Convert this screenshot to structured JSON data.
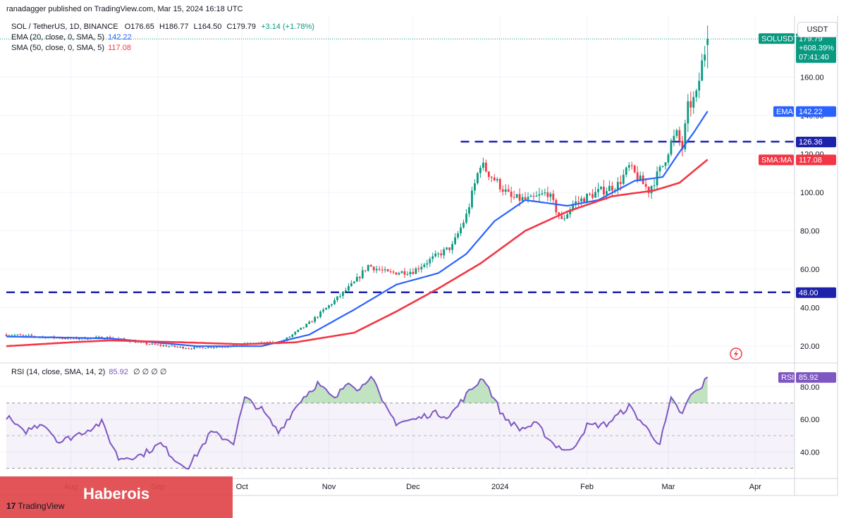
{
  "header": {
    "published_by": "ranadagger published on TradingView.com, Mar 15, 2024 16:18 UTC"
  },
  "legend": {
    "symbol": "SOL / TetherUS, 1D, BINANCE",
    "open": "O176.65",
    "high": "H186.77",
    "low": "L164.50",
    "close": "C179.79",
    "change": "+3.14 (+1.78%)",
    "ema_label": "EMA (20, close, 0, SMA, 5)",
    "ema_value": "142.22",
    "sma_label": "SMA (50, close, 0, SMA, 5)",
    "sma_value": "117.08",
    "rsi_label": "RSI (14, close, SMA, 14, 2)",
    "rsi_value": "85.92",
    "rsi_extra": "∅ ∅ ∅ ∅"
  },
  "currency_button": "USDT",
  "banner": {
    "text": "Haberois"
  },
  "logo": {
    "mark": "17",
    "text": "TradingView"
  },
  "colors": {
    "up": "#089981",
    "down": "#f23645",
    "ema": "#2962ff",
    "sma": "#f23645",
    "rsi": "#7e57c2",
    "level_line": "#1e22aa",
    "rsi_band": "#7e57c2"
  },
  "chart_data": [
    {
      "type": "candlestick",
      "title": "SOL / TetherUS, 1D, BINANCE",
      "x_ticks": [
        "Aug",
        "Sep",
        "Oct",
        "Nov",
        "Dec",
        "2024",
        "Feb",
        "Mar",
        "Apr"
      ],
      "x_tick_dates": [
        "2023-08-01",
        "2023-09-01",
        "2023-10-01",
        "2023-11-01",
        "2023-12-01",
        "2024-01-01",
        "2024-02-01",
        "2024-03-01",
        "2024-04-01"
      ],
      "x_range": [
        "2023-07-09",
        "2024-04-15"
      ],
      "y_range": [
        12,
        192
      ],
      "y_ticks": [
        20.0,
        40.0,
        60.0,
        80.0,
        100.0,
        120.0,
        140.0,
        160.0
      ],
      "grid": true,
      "price_labels": [
        {
          "text": "SOLUSDT",
          "value": 179.79,
          "sub": [
            "179.79",
            "+608.39%",
            "07:41:40"
          ],
          "color": "#089981"
        },
        {
          "text": "EMA",
          "value": 142.22,
          "color": "#2962ff"
        },
        {
          "text": "SMA:MA",
          "value": 117.08,
          "color": "#f23645"
        },
        {
          "text": "",
          "value": 126.36,
          "color": "#1e22aa"
        },
        {
          "text": "",
          "value": 48.0,
          "color": "#1e22aa"
        }
      ],
      "horizontal_levels": [
        {
          "value": 126.36,
          "from": "2023-12-18",
          "to": "2024-04-15"
        },
        {
          "value": 48.0,
          "from": "2023-07-09",
          "to": "2024-04-15"
        }
      ],
      "close_anchors": [
        [
          "2023-07-09",
          26
        ],
        [
          "2023-07-20",
          25
        ],
        [
          "2023-08-01",
          24
        ],
        [
          "2023-08-15",
          24.5
        ],
        [
          "2023-08-29",
          21
        ],
        [
          "2023-09-12",
          19
        ],
        [
          "2023-09-26",
          20
        ],
        [
          "2023-10-01",
          21
        ],
        [
          "2023-10-15",
          22
        ],
        [
          "2023-10-25",
          32
        ],
        [
          "2023-11-01",
          41
        ],
        [
          "2023-11-10",
          53
        ],
        [
          "2023-11-15",
          62
        ],
        [
          "2023-11-22",
          58
        ],
        [
          "2023-12-01",
          59
        ],
        [
          "2023-12-05",
          63
        ],
        [
          "2023-12-15",
          72
        ],
        [
          "2023-12-20",
          88
        ],
        [
          "2023-12-25",
          115
        ],
        [
          "2023-12-28",
          110
        ],
        [
          "2024-01-05",
          97
        ],
        [
          "2024-01-12",
          96
        ],
        [
          "2024-01-18",
          100
        ],
        [
          "2024-01-23",
          85
        ],
        [
          "2024-01-27",
          94
        ],
        [
          "2024-02-03",
          99
        ],
        [
          "2024-02-12",
          104
        ],
        [
          "2024-02-16",
          113
        ],
        [
          "2024-02-23",
          101
        ],
        [
          "2024-02-28",
          114
        ],
        [
          "2024-03-02",
          126
        ],
        [
          "2024-03-04",
          130
        ],
        [
          "2024-03-06",
          123
        ],
        [
          "2024-03-08",
          144
        ],
        [
          "2024-03-11",
          150
        ],
        [
          "2024-03-13",
          167
        ],
        [
          "2024-03-15",
          179.79
        ]
      ],
      "ema20_anchors": [
        [
          "2023-07-09",
          25
        ],
        [
          "2023-08-15",
          24
        ],
        [
          "2023-09-15",
          20
        ],
        [
          "2023-10-08",
          20
        ],
        [
          "2023-10-25",
          26
        ],
        [
          "2023-11-10",
          39
        ],
        [
          "2023-11-25",
          52
        ],
        [
          "2023-12-10",
          58
        ],
        [
          "2023-12-20",
          68
        ],
        [
          "2023-12-30",
          85
        ],
        [
          "2024-01-10",
          96
        ],
        [
          "2024-01-25",
          93
        ],
        [
          "2024-02-05",
          96
        ],
        [
          "2024-02-18",
          106
        ],
        [
          "2024-02-28",
          108
        ],
        [
          "2024-03-05",
          121
        ],
        [
          "2024-03-10",
          131
        ],
        [
          "2024-03-15",
          142.22
        ]
      ],
      "sma50_anchors": [
        [
          "2023-07-09",
          20
        ],
        [
          "2023-08-01",
          22
        ],
        [
          "2023-08-15",
          23
        ],
        [
          "2023-09-10",
          22
        ],
        [
          "2023-10-01",
          21
        ],
        [
          "2023-10-20",
          22
        ],
        [
          "2023-11-10",
          27
        ],
        [
          "2023-11-25",
          38
        ],
        [
          "2023-12-10",
          50
        ],
        [
          "2023-12-25",
          63
        ],
        [
          "2024-01-10",
          80
        ],
        [
          "2024-01-25",
          90
        ],
        [
          "2024-02-10",
          98
        ],
        [
          "2024-02-25",
          101
        ],
        [
          "2024-03-05",
          105
        ],
        [
          "2024-03-15",
          117.08
        ]
      ],
      "current_price": 179.79
    },
    {
      "type": "line",
      "title": "RSI (14, close, SMA, 14, 2)",
      "y_range": [
        25,
        92
      ],
      "y_ticks": [
        40.0,
        60.0,
        80.0
      ],
      "bands": [
        30,
        50,
        70
      ],
      "current": 85.92,
      "rsi_anchors": [
        [
          "2023-07-09",
          62
        ],
        [
          "2023-07-15",
          52
        ],
        [
          "2023-07-22",
          58
        ],
        [
          "2023-07-28",
          46
        ],
        [
          "2023-08-05",
          52
        ],
        [
          "2023-08-12",
          58
        ],
        [
          "2023-08-18",
          36
        ],
        [
          "2023-08-26",
          38
        ],
        [
          "2023-09-02",
          45
        ],
        [
          "2023-09-08",
          34
        ],
        [
          "2023-09-12",
          31
        ],
        [
          "2023-09-20",
          52
        ],
        [
          "2023-09-28",
          46
        ],
        [
          "2023-10-02",
          73
        ],
        [
          "2023-10-08",
          66
        ],
        [
          "2023-10-14",
          52
        ],
        [
          "2023-10-22",
          72
        ],
        [
          "2023-10-28",
          82
        ],
        [
          "2023-11-03",
          72
        ],
        [
          "2023-11-08",
          84
        ],
        [
          "2023-11-12",
          78
        ],
        [
          "2023-11-16",
          88
        ],
        [
          "2023-11-20",
          70
        ],
        [
          "2023-11-25",
          58
        ],
        [
          "2023-12-02",
          60
        ],
        [
          "2023-12-08",
          64
        ],
        [
          "2023-12-14",
          62
        ],
        [
          "2023-12-20",
          75
        ],
        [
          "2023-12-26",
          86
        ],
        [
          "2024-01-02",
          62
        ],
        [
          "2024-01-08",
          54
        ],
        [
          "2024-01-14",
          57
        ],
        [
          "2024-01-20",
          45
        ],
        [
          "2024-01-26",
          40
        ],
        [
          "2024-02-01",
          56
        ],
        [
          "2024-02-08",
          57
        ],
        [
          "2024-02-16",
          68
        ],
        [
          "2024-02-22",
          55
        ],
        [
          "2024-02-27",
          45
        ],
        [
          "2024-03-02",
          72
        ],
        [
          "2024-03-06",
          63
        ],
        [
          "2024-03-09",
          75
        ],
        [
          "2024-03-12",
          78
        ],
        [
          "2024-03-15",
          85.92
        ]
      ]
    }
  ]
}
